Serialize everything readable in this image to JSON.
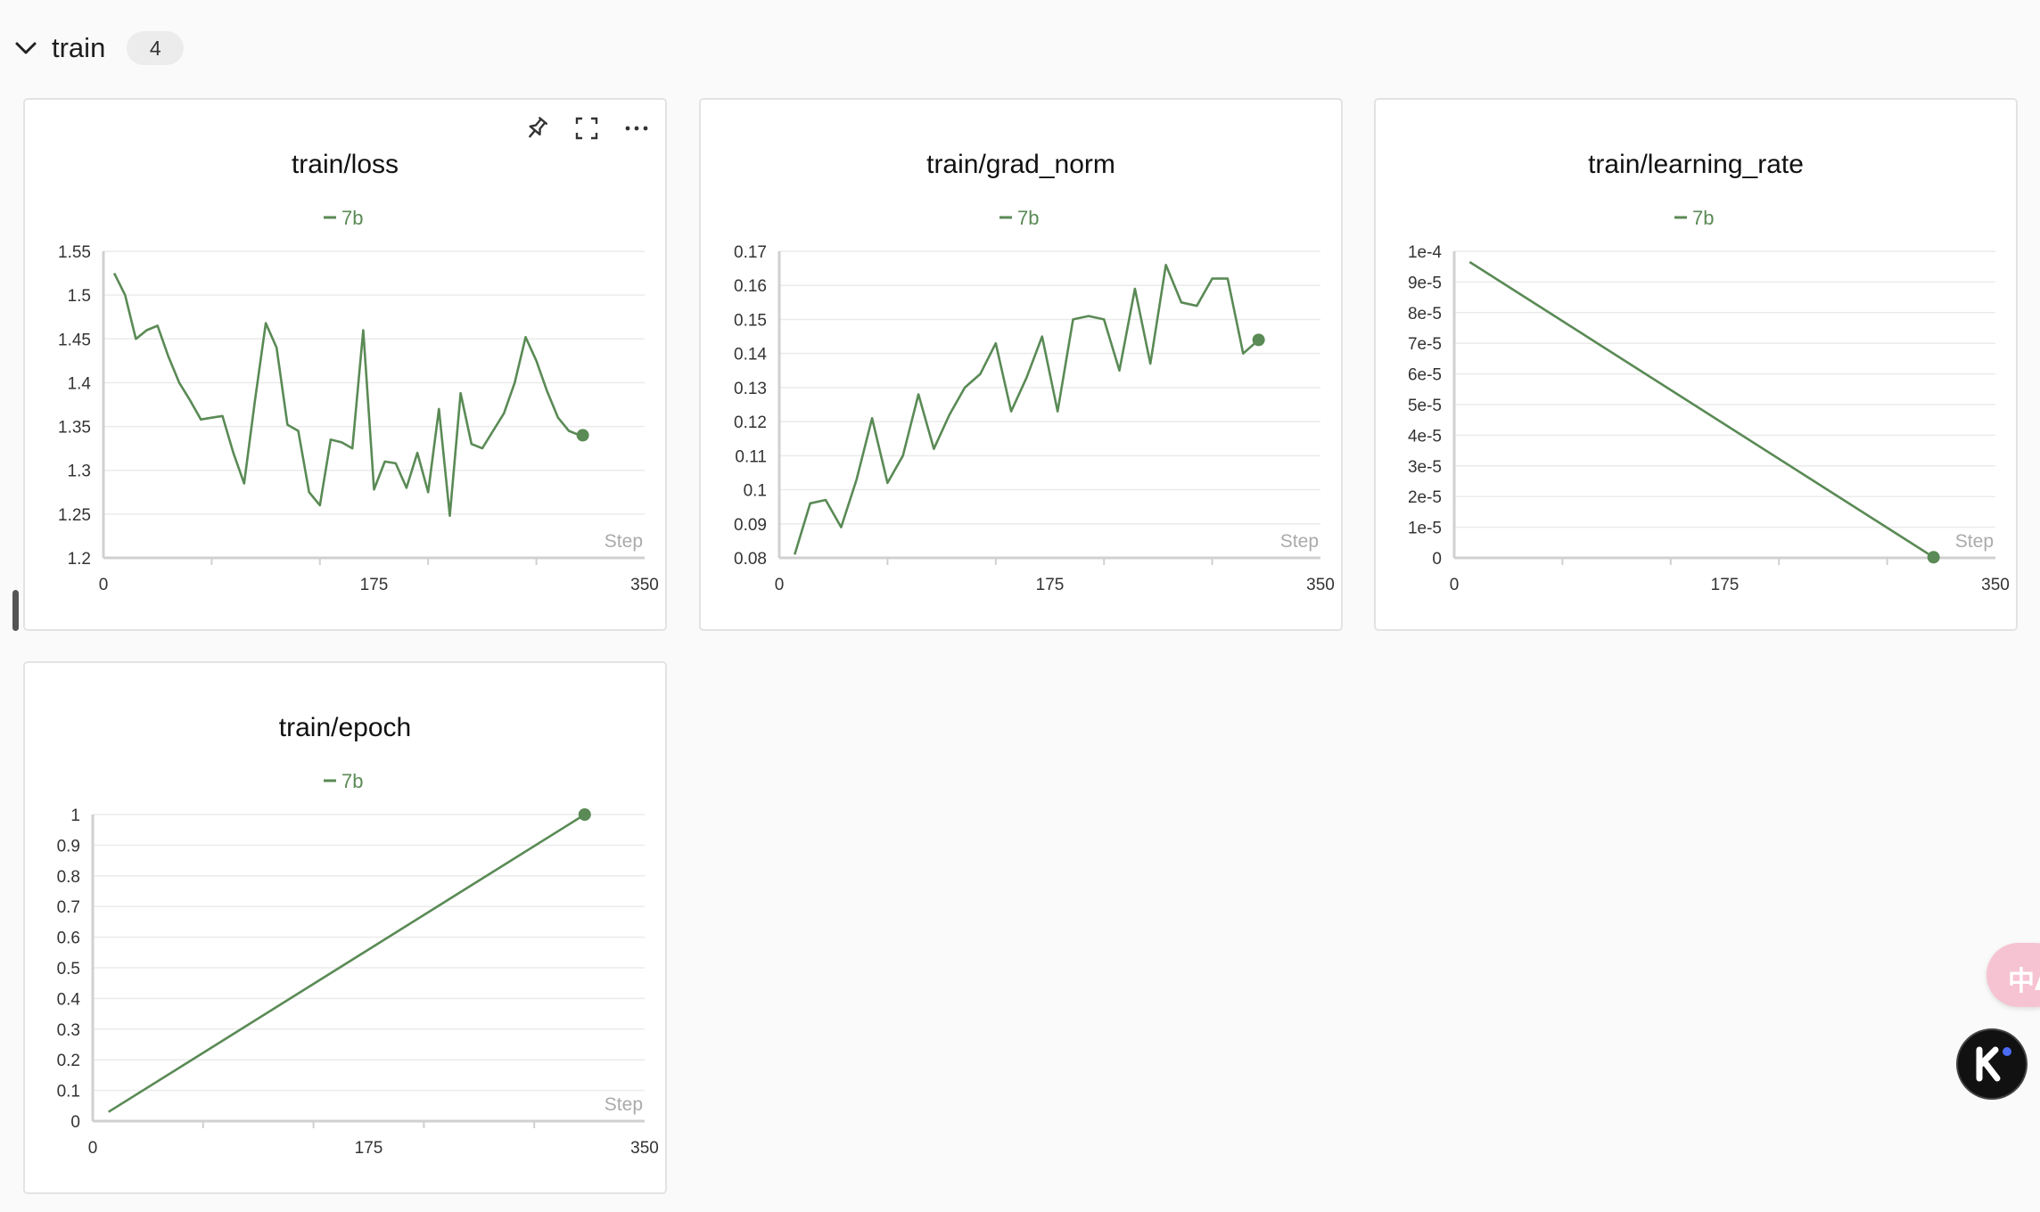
{
  "group": {
    "title": "train",
    "count": "4"
  },
  "colors": {
    "series": "#5a8a55",
    "grid": "#ebebeb",
    "axis": "#d0d0d0",
    "text": "#333333",
    "step_label": "#aaaaaa"
  },
  "icons": {
    "pin": "pin-icon",
    "fullscreen": "fullscreen-icon",
    "more": "more-icon",
    "collapse": "chevron-down-icon"
  },
  "chart_data": [
    {
      "type": "line",
      "title": "train/loss",
      "xlabel": "Step",
      "ylabel": "",
      "xlim": [
        0,
        350
      ],
      "ylim": [
        1.2,
        1.55
      ],
      "x_ticks": [
        "0",
        "175",
        "350"
      ],
      "y_ticks": [
        "1.2",
        "1.25",
        "1.3",
        "1.35",
        "1.4",
        "1.45",
        "1.5",
        "1.55"
      ],
      "legend": "top-center",
      "grid": true,
      "series": [
        {
          "name": "7b",
          "x": [
            7,
            14,
            21,
            28,
            35,
            42,
            49,
            56,
            63,
            70,
            77,
            84,
            91,
            98,
            105,
            112,
            119,
            126,
            133,
            140,
            147,
            154,
            161,
            168,
            175,
            182,
            189,
            196,
            203,
            210,
            217,
            224,
            231,
            238,
            245,
            252,
            259,
            266,
            273,
            280,
            287,
            294,
            301,
            308,
            310
          ],
          "y": [
            1.525,
            1.5,
            1.45,
            1.46,
            1.465,
            1.43,
            1.4,
            1.38,
            1.358,
            1.36,
            1.362,
            1.32,
            1.285,
            1.38,
            1.468,
            1.44,
            1.352,
            1.345,
            1.275,
            1.26,
            1.335,
            1.332,
            1.325,
            1.46,
            1.278,
            1.31,
            1.308,
            1.28,
            1.32,
            1.275,
            1.37,
            1.248,
            1.388,
            1.33,
            1.325,
            1.345,
            1.365,
            1.4,
            1.452,
            1.425,
            1.39,
            1.36,
            1.345,
            1.34,
            1.34
          ]
        }
      ]
    },
    {
      "type": "line",
      "title": "train/grad_norm",
      "xlabel": "Step",
      "ylabel": "",
      "xlim": [
        0,
        350
      ],
      "ylim": [
        0.08,
        0.17
      ],
      "x_ticks": [
        "0",
        "175",
        "350"
      ],
      "y_ticks": [
        "0.08",
        "0.09",
        "0.1",
        "0.11",
        "0.12",
        "0.13",
        "0.14",
        "0.15",
        "0.16",
        "0.17"
      ],
      "legend": "top-center",
      "grid": true,
      "series": [
        {
          "name": "7b",
          "x": [
            10,
            20,
            30,
            40,
            50,
            60,
            70,
            80,
            90,
            100,
            110,
            120,
            130,
            140,
            150,
            160,
            170,
            180,
            190,
            200,
            210,
            220,
            230,
            240,
            250,
            260,
            270,
            280,
            290,
            300,
            310
          ],
          "y": [
            0.081,
            0.096,
            0.097,
            0.089,
            0.103,
            0.121,
            0.102,
            0.11,
            0.128,
            0.112,
            0.122,
            0.13,
            0.134,
            0.143,
            0.123,
            0.133,
            0.145,
            0.123,
            0.15,
            0.151,
            0.15,
            0.135,
            0.159,
            0.137,
            0.166,
            0.155,
            0.154,
            0.162,
            0.162,
            0.14,
            0.144
          ]
        }
      ]
    },
    {
      "type": "line",
      "title": "train/learning_rate",
      "xlabel": "Step",
      "ylabel": "",
      "xlim": [
        0,
        350
      ],
      "ylim": [
        0,
        0.0001
      ],
      "x_ticks": [
        "0",
        "175",
        "350"
      ],
      "y_ticks": [
        "0",
        "1e-5",
        "2e-5",
        "3e-5",
        "4e-5",
        "5e-5",
        "6e-5",
        "7e-5",
        "8e-5",
        "9e-5",
        "1e-4"
      ],
      "legend": "top-center",
      "grid": true,
      "series": [
        {
          "name": "7b",
          "x": [
            10,
            310
          ],
          "y": [
            9.65e-05,
            2e-07
          ]
        }
      ]
    },
    {
      "type": "line",
      "title": "train/epoch",
      "xlabel": "Step",
      "ylabel": "",
      "xlim": [
        0,
        350
      ],
      "ylim": [
        0,
        1
      ],
      "x_ticks": [
        "0",
        "175",
        "350"
      ],
      "y_ticks": [
        "0",
        "0.1",
        "0.2",
        "0.3",
        "0.4",
        "0.5",
        "0.6",
        "0.7",
        "0.8",
        "0.9",
        "1"
      ],
      "legend": "top-center",
      "grid": true,
      "series": [
        {
          "name": "7b",
          "x": [
            10,
            312
          ],
          "y": [
            0.03,
            1.0
          ]
        }
      ]
    }
  ]
}
